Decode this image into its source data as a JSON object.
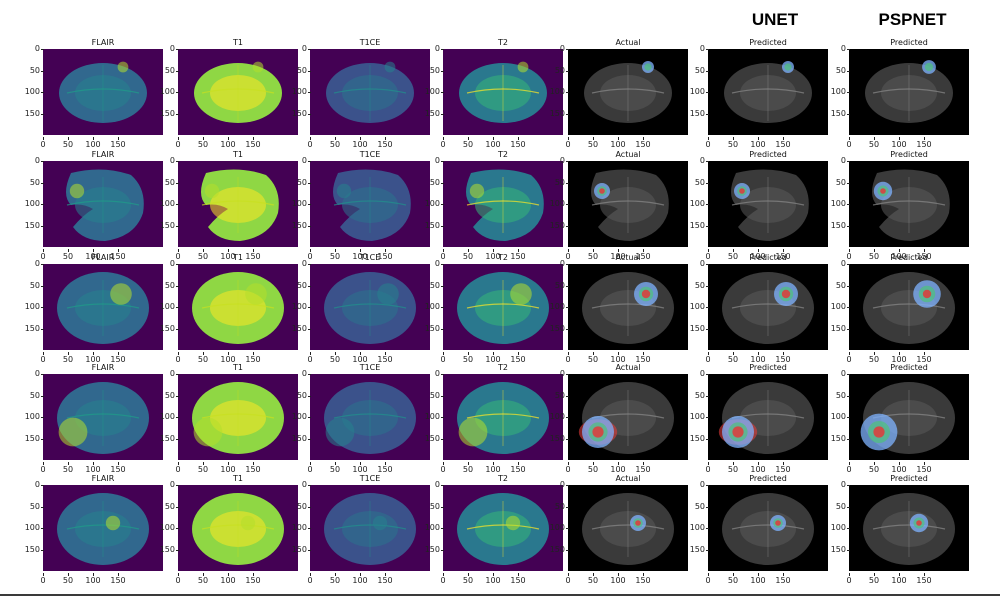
{
  "headers": {
    "unet": "UNET",
    "pspnet": "PSPNET"
  },
  "columns": [
    {
      "title": "FLAIR",
      "style": "mri",
      "variant": "flair"
    },
    {
      "title": "T1",
      "style": "mri",
      "variant": "t1"
    },
    {
      "title": "T1CE",
      "style": "mri",
      "variant": "t1ce"
    },
    {
      "title": "T2",
      "style": "mri",
      "variant": "t2"
    },
    {
      "title": "Actual",
      "style": "seg",
      "variant": "actual"
    },
    {
      "title": "Predicted",
      "style": "seg",
      "variant": "unet"
    },
    {
      "title": "Predicted",
      "style": "seg",
      "variant": "pspnet"
    }
  ],
  "rows": [
    {
      "tumor": "small-top"
    },
    {
      "tumor": "left-lesion"
    },
    {
      "tumor": "right-mass"
    },
    {
      "tumor": "left-large"
    },
    {
      "tumor": "center-small"
    }
  ],
  "axes": {
    "y_ticks": [
      "0",
      "50",
      "100",
      "150"
    ],
    "x_ticks": [
      "0",
      "50",
      "100",
      "150"
    ]
  },
  "colors": {
    "viridis_bg": "#440154",
    "seg_bg": "#000000",
    "mask_blue": "#7fb3ff",
    "mask_green": "#4fc27a",
    "mask_red": "#e03a3a"
  }
}
